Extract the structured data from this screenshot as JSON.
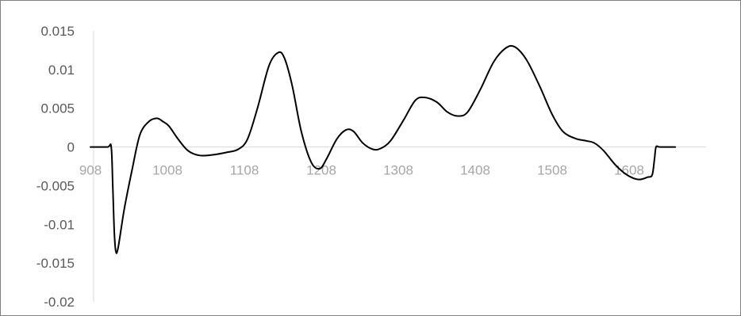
{
  "chart_data": {
    "type": "line",
    "title": "",
    "xlabel": "",
    "ylabel": "",
    "xlim": [
      908,
      1708
    ],
    "ylim": [
      -0.02,
      0.015
    ],
    "x_ticks": [
      "908",
      "1008",
      "1108",
      "1208",
      "1308",
      "1408",
      "1508",
      "1608"
    ],
    "y_ticks": [
      "0.015",
      "0.01",
      "0.005",
      "0",
      "-0.005",
      "-0.01",
      "-0.015",
      "-0.02"
    ],
    "grid": false,
    "legend": "none",
    "series": [
      {
        "color": "#000000",
        "points": [
          [
            908,
            0
          ],
          [
            930,
            0
          ],
          [
            935,
            0
          ],
          [
            937,
            -0.005
          ],
          [
            939,
            -0.011
          ],
          [
            941,
            -0.0135
          ],
          [
            944,
            -0.013
          ],
          [
            952,
            -0.008
          ],
          [
            962,
            -0.003
          ],
          [
            972,
            0.0015
          ],
          [
            983,
            0.0032
          ],
          [
            994,
            0.0037
          ],
          [
            1002,
            0.0033
          ],
          [
            1010,
            0.0027
          ],
          [
            1022,
            0.001
          ],
          [
            1035,
            -0.0005
          ],
          [
            1050,
            -0.0011
          ],
          [
            1068,
            -0.001
          ],
          [
            1085,
            -0.0007
          ],
          [
            1100,
            -0.0003
          ],
          [
            1112,
            0.001
          ],
          [
            1125,
            0.005
          ],
          [
            1140,
            0.0105
          ],
          [
            1152,
            0.0122
          ],
          [
            1160,
            0.0115
          ],
          [
            1170,
            0.008
          ],
          [
            1182,
            0.002
          ],
          [
            1195,
            -0.002
          ],
          [
            1206,
            -0.0028
          ],
          [
            1215,
            -0.0015
          ],
          [
            1228,
            0.001
          ],
          [
            1240,
            0.0022
          ],
          [
            1250,
            0.002
          ],
          [
            1262,
            0.0005
          ],
          [
            1275,
            -0.0003
          ],
          [
            1285,
            -0.0002
          ],
          [
            1298,
            0.0008
          ],
          [
            1315,
            0.0035
          ],
          [
            1330,
            0.006
          ],
          [
            1342,
            0.0064
          ],
          [
            1358,
            0.0058
          ],
          [
            1372,
            0.0045
          ],
          [
            1385,
            0.004
          ],
          [
            1398,
            0.0045
          ],
          [
            1415,
            0.0075
          ],
          [
            1432,
            0.011
          ],
          [
            1448,
            0.0128
          ],
          [
            1460,
            0.0129
          ],
          [
            1475,
            0.0112
          ],
          [
            1492,
            0.0078
          ],
          [
            1508,
            0.0042
          ],
          [
            1522,
            0.002
          ],
          [
            1538,
            0.0011
          ],
          [
            1552,
            0.0008
          ],
          [
            1563,
            0.0005
          ],
          [
            1575,
            -0.0005
          ],
          [
            1590,
            -0.0023
          ],
          [
            1605,
            -0.0036
          ],
          [
            1620,
            -0.0042
          ],
          [
            1632,
            -0.0039
          ],
          [
            1638,
            -0.0036
          ],
          [
            1641,
            -0.0015
          ],
          [
            1643,
            0
          ],
          [
            1648,
            0
          ],
          [
            1668,
            0
          ]
        ]
      }
    ],
    "colors": {
      "line": "#000000",
      "axis": "#d9d9d9",
      "y_tick_text": "#595959",
      "x_tick_text": "#a6a6a6"
    }
  }
}
